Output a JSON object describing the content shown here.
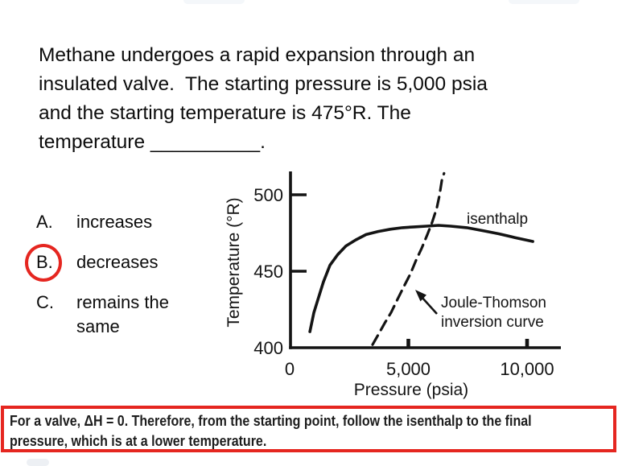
{
  "question": {
    "lines": [
      "Methane undergoes a rapid expansion through an",
      "insulated valve.  The starting pressure is 5,000 psia",
      "and the starting temperature is 475°R. The",
      "temperature __________."
    ]
  },
  "options": [
    {
      "letter": "A.",
      "text": "increases",
      "selected": false
    },
    {
      "letter": "B.",
      "text": "decreases",
      "selected": true
    },
    {
      "letter": "C.",
      "text": "remains the\nsame",
      "selected": false
    }
  ],
  "chart_data": {
    "type": "line",
    "title": "",
    "xlabel": "Pressure (psia)",
    "ylabel": "Temperature (°R)",
    "grid": false,
    "legend": "none",
    "x_axis": {
      "ticks": [
        0,
        5000,
        10000
      ],
      "tick_labels": [
        "0",
        "5,000",
        "10,000"
      ],
      "range": [
        0,
        11400
      ]
    },
    "y_axis": {
      "ticks": [
        400,
        450,
        500
      ],
      "tick_labels": [
        "400",
        "450",
        "500"
      ],
      "range": [
        400,
        516
      ]
    },
    "series": [
      {
        "name": "isenthalp",
        "line_style": "solid",
        "points": [
          [
            850,
            410.5
          ],
          [
            1020,
            423
          ],
          [
            1190,
            431.5
          ],
          [
            1420,
            443
          ],
          [
            1700,
            454
          ],
          [
            2030,
            461
          ],
          [
            2370,
            466.5
          ],
          [
            2780,
            470.5
          ],
          [
            3220,
            474
          ],
          [
            3730,
            476
          ],
          [
            4240,
            477.5
          ],
          [
            4750,
            478.5
          ],
          [
            5250,
            479
          ],
          [
            5760,
            479.5
          ],
          [
            6270,
            480
          ],
          [
            6780,
            479.5
          ],
          [
            7460,
            478.5
          ],
          [
            8140,
            476.5
          ],
          [
            8810,
            474.5
          ],
          [
            9490,
            472
          ],
          [
            10240,
            469.5
          ]
        ]
      },
      {
        "name": "Joule-Thomson inversion curve",
        "line_style": "dashed",
        "points": [
          [
            3490,
            402
          ],
          [
            3730,
            408.5
          ],
          [
            4000,
            416
          ],
          [
            4270,
            423
          ],
          [
            4540,
            431.5
          ],
          [
            4810,
            440
          ],
          [
            5090,
            448.5
          ],
          [
            5320,
            457
          ],
          [
            5560,
            465
          ],
          [
            5800,
            474
          ],
          [
            6000,
            482
          ],
          [
            6200,
            491.5
          ],
          [
            6310,
            499.5
          ],
          [
            6410,
            509.5
          ],
          [
            6500,
            514
          ]
        ]
      }
    ],
    "annotations": {
      "isenthalp_label": "isenthalp",
      "jt_label_line1": "Joule-Thomson",
      "jt_label_line2": "inversion curve"
    }
  },
  "explanation": {
    "lines": [
      "For a valve, ΔH = 0. Therefore, from the starting point, follow the isenthalp to the final",
      "pressure, which is at a lower temperature."
    ]
  },
  "colors": {
    "accent_red": "#e52620",
    "ink": "#141414"
  }
}
